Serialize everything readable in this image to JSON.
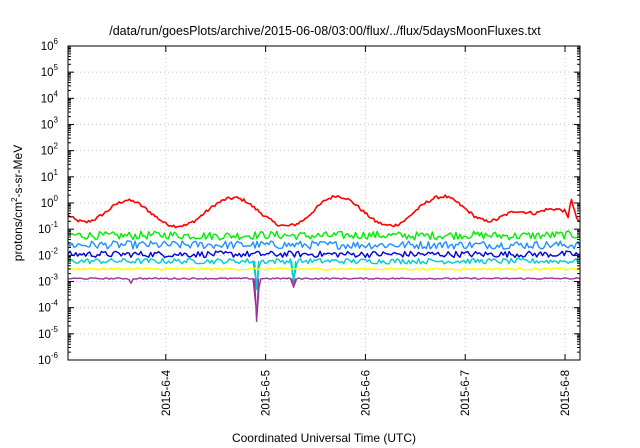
{
  "chart_data": {
    "type": "line",
    "title": "/data/run/goesPlots/archive/2015-06-08/03:00/flux/../flux/5daysMoonFluxes.txt",
    "xlabel": "Coordinated Universal Time (UTC)",
    "ylabel": "protons/cm²-s-sr-MeV",
    "ylabel_parts": [
      "protons/cm",
      "2",
      "-s-sr-MeV"
    ],
    "x_unit": "days since 2015-06-03 00:00 UTC",
    "xlim": [
      3.02,
      8.15
    ],
    "ylim": [
      1e-06,
      1000000.0
    ],
    "y_scale": "log",
    "grid": true,
    "x_ticks": [
      {
        "x": 4,
        "label": "2015-6-4"
      },
      {
        "x": 5,
        "label": "2015-6-5"
      },
      {
        "x": 6,
        "label": "2015-6-6"
      },
      {
        "x": 7,
        "label": "2015-6-7"
      },
      {
        "x": 8,
        "label": "2015-6-8"
      }
    ],
    "y_ticks": [
      {
        "v": 1e-06,
        "base": "10",
        "exp": "-6"
      },
      {
        "v": 1e-05,
        "base": "10",
        "exp": "-5"
      },
      {
        "v": 0.0001,
        "base": "10",
        "exp": "-4"
      },
      {
        "v": 0.001,
        "base": "10",
        "exp": "-3"
      },
      {
        "v": 0.01,
        "base": "10",
        "exp": "-2"
      },
      {
        "v": 0.1,
        "base": "10",
        "exp": "-1"
      },
      {
        "v": 1,
        "base": "10",
        "exp": "0"
      },
      {
        "v": 10,
        "base": "10",
        "exp": "1"
      },
      {
        "v": 100,
        "base": "10",
        "exp": "2"
      },
      {
        "v": 1000,
        "base": "10",
        "exp": "3"
      },
      {
        "v": 10000,
        "base": "10",
        "exp": "4"
      },
      {
        "v": 100000,
        "base": "10",
        "exp": "5"
      },
      {
        "v": 1000000,
        "base": "10",
        "exp": "6"
      }
    ],
    "series": [
      {
        "color": "#ff0000",
        "points": [
          [
            3.02,
            0.35
          ],
          [
            3.1,
            0.22
          ],
          [
            3.2,
            0.18
          ],
          [
            3.3,
            0.25
          ],
          [
            3.4,
            0.45
          ],
          [
            3.5,
            0.9
          ],
          [
            3.6,
            1.3
          ],
          [
            3.7,
            1.1
          ],
          [
            3.8,
            0.6
          ],
          [
            3.9,
            0.3
          ],
          [
            4.0,
            0.16
          ],
          [
            4.1,
            0.13
          ],
          [
            4.2,
            0.14
          ],
          [
            4.3,
            0.22
          ],
          [
            4.4,
            0.45
          ],
          [
            4.5,
            0.9
          ],
          [
            4.6,
            1.4
          ],
          [
            4.7,
            1.6
          ],
          [
            4.8,
            1.2
          ],
          [
            4.9,
            0.6
          ],
          [
            5.0,
            0.3
          ],
          [
            5.1,
            0.16
          ],
          [
            5.2,
            0.13
          ],
          [
            5.3,
            0.15
          ],
          [
            5.4,
            0.25
          ],
          [
            5.5,
            0.6
          ],
          [
            5.6,
            1.3
          ],
          [
            5.7,
            1.9
          ],
          [
            5.8,
            1.6
          ],
          [
            5.9,
            0.9
          ],
          [
            6.0,
            0.4
          ],
          [
            6.1,
            0.2
          ],
          [
            6.2,
            0.14
          ],
          [
            6.3,
            0.14
          ],
          [
            6.4,
            0.22
          ],
          [
            6.5,
            0.5
          ],
          [
            6.6,
            1.0
          ],
          [
            6.7,
            1.6
          ],
          [
            6.8,
            1.8
          ],
          [
            6.9,
            1.2
          ],
          [
            7.0,
            0.6
          ],
          [
            7.1,
            0.3
          ],
          [
            7.2,
            0.2
          ],
          [
            7.3,
            0.22
          ],
          [
            7.4,
            0.35
          ],
          [
            7.5,
            0.5
          ],
          [
            7.6,
            0.45
          ],
          [
            7.7,
            0.4
          ],
          [
            7.8,
            0.55
          ],
          [
            7.9,
            0.6
          ],
          [
            8.0,
            0.5
          ],
          [
            8.03,
            0.25
          ],
          [
            8.06,
            1.8
          ],
          [
            8.09,
            0.5
          ],
          [
            8.12,
            0.25
          ],
          [
            8.15,
            0.18
          ]
        ]
      },
      {
        "color": "#00ee00",
        "points": [
          [
            3.02,
            0.06
          ],
          [
            3.5,
            0.055
          ],
          [
            4.0,
            0.06
          ],
          [
            4.5,
            0.055
          ],
          [
            5.0,
            0.06
          ],
          [
            5.5,
            0.055
          ],
          [
            6.0,
            0.06
          ],
          [
            6.5,
            0.055
          ],
          [
            7.0,
            0.06
          ],
          [
            7.5,
            0.055
          ],
          [
            8.0,
            0.06
          ],
          [
            8.15,
            0.06
          ]
        ],
        "noise": 0.45
      },
      {
        "color": "#1e90ff",
        "points": [
          [
            3.02,
            0.025
          ],
          [
            4.0,
            0.025
          ],
          [
            5.0,
            0.025
          ],
          [
            6.0,
            0.025
          ],
          [
            7.0,
            0.025
          ],
          [
            8.15,
            0.025
          ]
        ],
        "noise": 0.45
      },
      {
        "color": "#0000dd",
        "points": [
          [
            3.02,
            0.011
          ],
          [
            4.0,
            0.011
          ],
          [
            5.0,
            0.011
          ],
          [
            6.0,
            0.011
          ],
          [
            7.0,
            0.011
          ],
          [
            8.15,
            0.011
          ]
        ],
        "noise": 0.35
      },
      {
        "color": "#00cccc",
        "points": [
          [
            3.02,
            0.006
          ],
          [
            4.0,
            0.006
          ],
          [
            4.88,
            0.006
          ],
          [
            4.91,
            0.0005
          ],
          [
            4.94,
            0.006
          ],
          [
            5.25,
            0.006
          ],
          [
            5.28,
            0.0009
          ],
          [
            5.31,
            0.006
          ],
          [
            6.0,
            0.006
          ],
          [
            7.0,
            0.006
          ],
          [
            8.15,
            0.006
          ]
        ],
        "noise": 0.3
      },
      {
        "color": "#ffff00",
        "points": [
          [
            3.02,
            0.003
          ],
          [
            4.0,
            0.003
          ],
          [
            5.0,
            0.003
          ],
          [
            6.0,
            0.003
          ],
          [
            7.0,
            0.003
          ],
          [
            8.15,
            0.003
          ]
        ],
        "noise": 0.12
      },
      {
        "color": "#993399",
        "points": [
          [
            3.02,
            0.0013
          ],
          [
            3.5,
            0.0013
          ],
          [
            3.63,
            0.0013
          ],
          [
            3.65,
            0.0008
          ],
          [
            3.67,
            0.0013
          ],
          [
            4.0,
            0.0013
          ],
          [
            4.88,
            0.0013
          ],
          [
            4.91,
            3e-05
          ],
          [
            4.94,
            0.0013
          ],
          [
            5.25,
            0.0013
          ],
          [
            5.28,
            0.0006
          ],
          [
            5.31,
            0.0013
          ],
          [
            6.0,
            0.0013
          ],
          [
            7.0,
            0.0013
          ],
          [
            8.0,
            0.0013
          ],
          [
            8.15,
            0.0013
          ]
        ],
        "noise": 0.08
      }
    ]
  }
}
